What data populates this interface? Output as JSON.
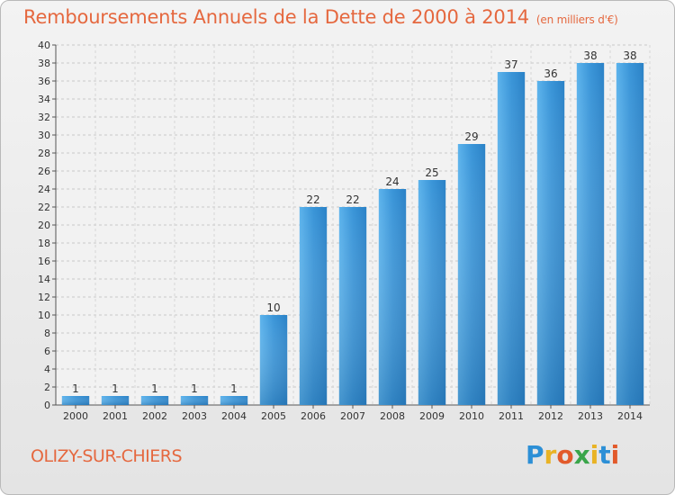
{
  "title": "Remboursements Annuels de la Dette de 2000 à 2014",
  "unit": "(en milliers d'€)",
  "town": "OLIZY-SUR-CHIERS",
  "logo": {
    "letters": [
      "P",
      "r",
      "o",
      "x",
      "i",
      "t",
      "i"
    ],
    "colors": [
      "#2c8fd6",
      "#e9b325",
      "#e25a2b",
      "#3aa54a",
      "#e9b325",
      "#2c8fd6",
      "#e25a2b"
    ]
  },
  "colors": {
    "bar": "#3a95d8",
    "bar_light": "#5cb3ec",
    "bar_dark": "#1f6fae",
    "text_accent": "#e5683f"
  },
  "chart_data": {
    "type": "bar",
    "categories": [
      "2000",
      "2001",
      "2002",
      "2003",
      "2004",
      "2005",
      "2006",
      "2007",
      "2008",
      "2009",
      "2010",
      "2011",
      "2012",
      "2013",
      "2014"
    ],
    "values": [
      1,
      1,
      1,
      1,
      1,
      10,
      22,
      22,
      24,
      25,
      29,
      37,
      36,
      38,
      38
    ],
    "ylim": [
      0,
      40
    ],
    "yticks": [
      0,
      2,
      4,
      6,
      8,
      10,
      12,
      14,
      16,
      18,
      20,
      22,
      24,
      26,
      28,
      30,
      32,
      34,
      36,
      38,
      40
    ],
    "grid": true,
    "data_labels": true
  }
}
